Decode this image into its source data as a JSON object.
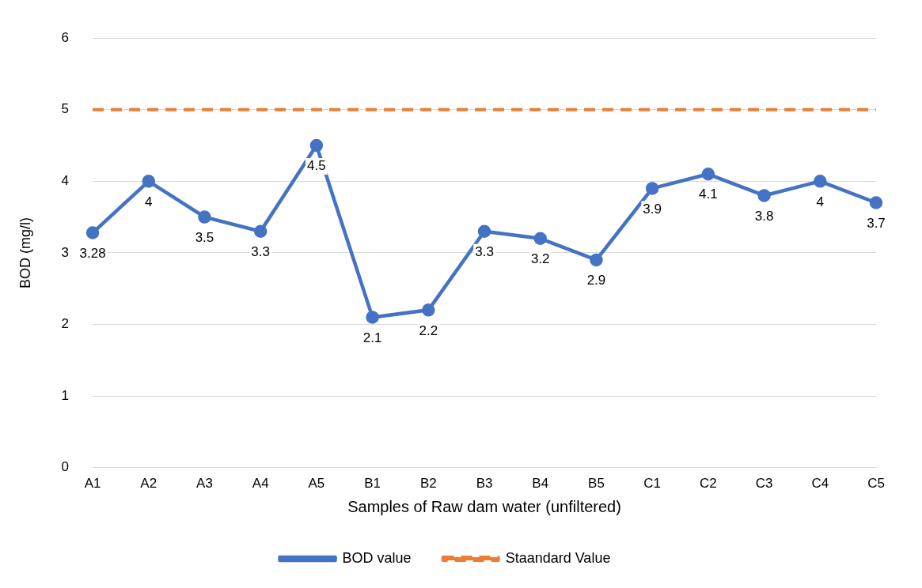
{
  "chart_data": {
    "type": "line",
    "xlabel": "Samples of Raw dam water (unfiltered)",
    "ylabel": "BOD (mg/l)",
    "categories": [
      "A1",
      "A2",
      "A3",
      "A4",
      "A5",
      "B1",
      "B2",
      "B3",
      "B4",
      "B5",
      "C1",
      "C2",
      "C3",
      "C4",
      "C5"
    ],
    "series": [
      {
        "name": "BOD value",
        "color": "#4472c4",
        "marker": "circle",
        "line_style": "solid",
        "values": [
          3.28,
          4,
          3.5,
          3.3,
          4.5,
          2.1,
          2.2,
          3.3,
          3.2,
          2.9,
          3.9,
          4.1,
          3.8,
          4,
          3.7
        ],
        "value_labels": [
          "3.28",
          "4",
          "3.5",
          "3.3",
          "4.5",
          "2.1",
          "2.2",
          "3.3",
          "3.2",
          "2.9",
          "3.9",
          "4.1",
          "3.8",
          "4",
          "3.7"
        ]
      },
      {
        "name": "Staandard Value",
        "color": "#ed7d31",
        "marker": "none",
        "line_style": "dashed",
        "values": [
          5,
          5,
          5,
          5,
          5,
          5,
          5,
          5,
          5,
          5,
          5,
          5,
          5,
          5,
          5
        ]
      }
    ],
    "ylim": [
      0,
      6
    ],
    "yticks": [
      0,
      1,
      2,
      3,
      4,
      5,
      6
    ],
    "grid": "y",
    "legend": "bottom"
  }
}
